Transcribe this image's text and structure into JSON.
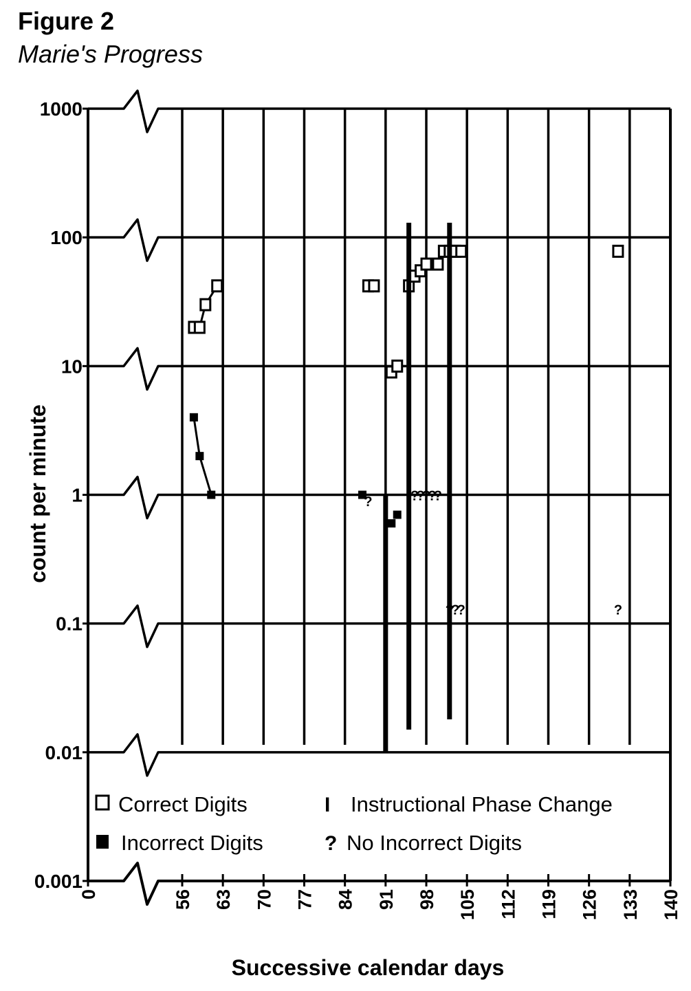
{
  "figure": {
    "title": "Figure 2",
    "subtitle": "Marie's Progress"
  },
  "chart_data": {
    "type": "scatter",
    "xlabel": "Successive calendar days",
    "ylabel": "count per minute",
    "yscale": "log",
    "ylim": [
      0.001,
      1000
    ],
    "xlim": [
      0,
      140
    ],
    "x_ticks": [
      "0",
      "56",
      "63",
      "70",
      "77",
      "84",
      "91",
      "98",
      "105",
      "112",
      "119",
      "126",
      "133",
      "140"
    ],
    "y_ticks": [
      "1000",
      "100",
      "10",
      "1",
      "0.1",
      "0.01",
      "0.001"
    ],
    "grid": true,
    "axis_break": "between 0 and 56 on x-axis",
    "legend_position": "bottom",
    "legend": {
      "correct": "Correct Digits",
      "incorrect": "Incorrect Digits",
      "phase": "Instructional Phase Change",
      "none": "No Incorrect Digits",
      "phase_symbol": "I",
      "none_symbol": "?"
    },
    "series": [
      {
        "name": "Correct Digits",
        "marker": "open-square",
        "points": [
          {
            "x": 58,
            "y": 20
          },
          {
            "x": 59,
            "y": 20
          },
          {
            "x": 60,
            "y": 30
          },
          {
            "x": 62,
            "y": 42
          },
          {
            "x": 88,
            "y": 42
          },
          {
            "x": 89,
            "y": 42
          },
          {
            "x": 92,
            "y": 9
          },
          {
            "x": 93,
            "y": 10
          },
          {
            "x": 95,
            "y": 42
          },
          {
            "x": 96,
            "y": 50
          },
          {
            "x": 97,
            "y": 55
          },
          {
            "x": 98,
            "y": 62
          },
          {
            "x": 100,
            "y": 62
          },
          {
            "x": 101,
            "y": 78
          },
          {
            "x": 102,
            "y": 78
          },
          {
            "x": 103,
            "y": 78
          },
          {
            "x": 104,
            "y": 78
          },
          {
            "x": 131,
            "y": 78
          }
        ],
        "connected_runs": [
          [
            0,
            3
          ],
          [
            8,
            15
          ]
        ]
      },
      {
        "name": "Incorrect Digits",
        "marker": "filled-square",
        "points": [
          {
            "x": 58,
            "y": 4
          },
          {
            "x": 59,
            "y": 2
          },
          {
            "x": 61,
            "y": 1
          },
          {
            "x": 87,
            "y": 1
          },
          {
            "x": 92,
            "y": 0.6
          },
          {
            "x": 93,
            "y": 0.7
          }
        ],
        "connected_runs": [
          [
            0,
            2
          ]
        ]
      },
      {
        "name": "No Incorrect Digits",
        "marker": "question-mark",
        "points": [
          {
            "x": 88,
            "y": 0.9
          },
          {
            "x": 96,
            "y": 1
          },
          {
            "x": 97,
            "y": 1
          },
          {
            "x": 98,
            "y": 1
          },
          {
            "x": 99,
            "y": 1
          },
          {
            "x": 100,
            "y": 1
          },
          {
            "x": 102,
            "y": 0.13
          },
          {
            "x": 103,
            "y": 0.13
          },
          {
            "x": 104,
            "y": 0.13
          },
          {
            "x": 131,
            "y": 0.13
          }
        ]
      },
      {
        "name": "Instructional Phase Change",
        "marker": "vertical-bar",
        "lines": [
          {
            "x": 91,
            "y_from": 0.01,
            "y_to": 1
          },
          {
            "x": 95,
            "y_from": 0.015,
            "y_to": 130
          },
          {
            "x": 102,
            "y_from": 0.018,
            "y_to": 130
          }
        ]
      }
    ]
  }
}
